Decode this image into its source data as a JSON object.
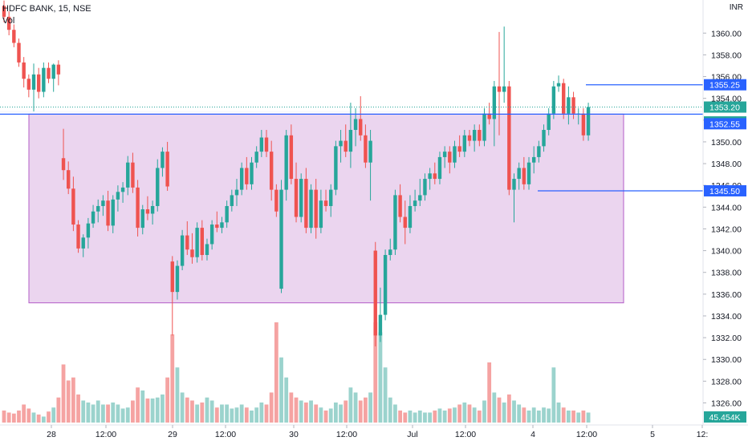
{
  "header": {
    "symbol": "HDFC BANK, 15, NSE",
    "volume_label": "Vol",
    "currency": "INR"
  },
  "colors": {
    "up": "#26a69a",
    "down": "#ef5350",
    "vol_up": "#9bd3cd",
    "vol_down": "#f5a3a2",
    "box_fill": "#e4c7ea",
    "box_stroke": "#b35cc7",
    "hline": "#2962ff",
    "price_line": "#26a69a"
  },
  "chart_data": {
    "type": "candlestick",
    "y_ticks": [
      "1360.00",
      "1358.00",
      "1356.00",
      "1354.00",
      "1352.00",
      "1350.00",
      "1348.00",
      "1346.00",
      "1344.00",
      "1342.00",
      "1340.00",
      "1338.00",
      "1336.00",
      "1334.00",
      "1332.00",
      "1330.00",
      "1328.00",
      "1326.00"
    ],
    "ylim": [
      1325.3,
      1361.2
    ],
    "x_ticks": [
      "28",
      "12:00",
      "29",
      "12:00",
      "30",
      "12:00",
      "Jul",
      "12:00",
      "4",
      "12:00",
      "5",
      "12:"
    ],
    "price_labels": [
      {
        "text": "1355.25",
        "value": 1355.25,
        "kind": "line"
      },
      {
        "text": "1353.20",
        "value": 1353.2,
        "kind": "last"
      },
      {
        "text": "07:26",
        "value": 1352.5,
        "kind": "timer"
      },
      {
        "text": "1352.55",
        "value": 1352.55,
        "kind": "line"
      },
      {
        "text": "1345.50",
        "value": 1345.5,
        "kind": "line"
      }
    ],
    "volume_label": "45.454K",
    "horizontal_lines": [
      1355.25,
      1352.55,
      1345.5
    ],
    "range_box": {
      "top": 1352.55,
      "bottom": 1335.2
    },
    "bars": [
      [
        1362.5,
        1363,
        1361,
        1361.5,
        0.12
      ],
      [
        1361.5,
        1362,
        1359.8,
        1360.3,
        0.1
      ],
      [
        1360.3,
        1360.8,
        1358.7,
        1359.1,
        0.09
      ],
      [
        1359.1,
        1359.5,
        1356.9,
        1357.3,
        0.12
      ],
      [
        1357.3,
        1357.8,
        1355,
        1355.8,
        0.18
      ],
      [
        1355.8,
        1356.2,
        1354.1,
        1354.8,
        0.14
      ],
      [
        1354.8,
        1357.2,
        1352.8,
        1356.2,
        0.1
      ],
      [
        1356.2,
        1356.8,
        1354,
        1354.6,
        0.08
      ],
      [
        1354.6,
        1357.3,
        1354.1,
        1356.8,
        0.06
      ],
      [
        1356.8,
        1357.3,
        1355.4,
        1355.8,
        0.11
      ],
      [
        1355.8,
        1357.2,
        1354.6,
        1357.1,
        0.15
      ],
      [
        1357.1,
        1357.5,
        1355.2,
        1356.2,
        0.25
      ],
      [
        1348.5,
        1351.2,
        1346.5,
        1347.4,
        0.58
      ],
      [
        1347.4,
        1348.2,
        1345.2,
        1345.7,
        0.42
      ],
      [
        1345.7,
        1346.8,
        1341.8,
        1342.4,
        0.45
      ],
      [
        1342.4,
        1342.8,
        1339.8,
        1340.2,
        0.28
      ],
      [
        1340.2,
        1341.5,
        1339.4,
        1341.2,
        0.22
      ],
      [
        1341.2,
        1343,
        1340.2,
        1342.5,
        0.2
      ],
      [
        1342.5,
        1344.2,
        1342.1,
        1343.6,
        0.18
      ],
      [
        1343.6,
        1344.7,
        1342.6,
        1344.1,
        0.22
      ],
      [
        1344.1,
        1345.1,
        1343.2,
        1344.6,
        0.18
      ],
      [
        1344.6,
        1345.5,
        1341.8,
        1342.3,
        0.18
      ],
      [
        1342.3,
        1345.1,
        1341.6,
        1344.7,
        0.2
      ],
      [
        1344.7,
        1346,
        1343.6,
        1345.4,
        0.18
      ],
      [
        1345.4,
        1346.3,
        1344.4,
        1345.8,
        0.14
      ],
      [
        1345.8,
        1348.7,
        1345.1,
        1348.1,
        0.15
      ],
      [
        1348.1,
        1349,
        1345.3,
        1345.8,
        0.22
      ],
      [
        1345.8,
        1346.5,
        1341.3,
        1342.1,
        0.35
      ],
      [
        1342.1,
        1344.2,
        1341.5,
        1343.8,
        0.32
      ],
      [
        1343.8,
        1345,
        1342.8,
        1343.4,
        0.24
      ],
      [
        1343.4,
        1344.6,
        1342.4,
        1344.1,
        0.24
      ],
      [
        1344.1,
        1348.4,
        1343.6,
        1347.6,
        0.25
      ],
      [
        1347.6,
        1349.5,
        1346.8,
        1349.1,
        0.28
      ],
      [
        1349.1,
        1350,
        1345.5,
        1345.9,
        0.45
      ],
      [
        1339,
        1339.5,
        1332.2,
        1336.2,
        0.88
      ],
      [
        1336.2,
        1339.1,
        1335.5,
        1338.6,
        0.55
      ],
      [
        1338.6,
        1341.9,
        1338.2,
        1341.4,
        0.3
      ],
      [
        1341.4,
        1342.7,
        1339.6,
        1340.1,
        0.25
      ],
      [
        1340.1,
        1341.6,
        1338.8,
        1339.4,
        0.22
      ],
      [
        1339.4,
        1342.6,
        1338.9,
        1342.1,
        0.18
      ],
      [
        1342.1,
        1342.8,
        1339.1,
        1339.6,
        0.2
      ],
      [
        1339.6,
        1341.1,
        1339.1,
        1340.6,
        0.25
      ],
      [
        1340.6,
        1342.8,
        1340.1,
        1342.4,
        0.22
      ],
      [
        1342.4,
        1343.6,
        1341.7,
        1342.1,
        0.15
      ],
      [
        1342.1,
        1343.1,
        1341.6,
        1342.6,
        0.18
      ],
      [
        1342.6,
        1344.6,
        1342.1,
        1344.1,
        0.18
      ],
      [
        1344.1,
        1345.6,
        1343.6,
        1345.1,
        0.14
      ],
      [
        1345.1,
        1346.6,
        1344.1,
        1345.6,
        0.15
      ],
      [
        1345.6,
        1348.1,
        1345.1,
        1347.6,
        0.18
      ],
      [
        1347.6,
        1348.6,
        1345.6,
        1346.1,
        0.15
      ],
      [
        1346.1,
        1348.6,
        1345.6,
        1348.1,
        0.12
      ],
      [
        1348.1,
        1349.6,
        1347.6,
        1349.1,
        0.15
      ],
      [
        1349.1,
        1351.1,
        1348.6,
        1350.4,
        0.2
      ],
      [
        1350.4,
        1351.1,
        1348.6,
        1349.1,
        0.18
      ],
      [
        1349.1,
        1350.1,
        1344.6,
        1345.6,
        0.3
      ],
      [
        1345.6,
        1346.1,
        1343.1,
        1343.6,
        1.0
      ],
      [
        1336.5,
        1346.5,
        1336.1,
        1345.6,
        0.65
      ],
      [
        1345.6,
        1351.1,
        1344.6,
        1350.6,
        0.45
      ],
      [
        1350.6,
        1351.6,
        1346.1,
        1346.6,
        0.3
      ],
      [
        1346.6,
        1348.1,
        1342.6,
        1343.1,
        0.25
      ],
      [
        1343.1,
        1347.1,
        1342.6,
        1346.6,
        0.22
      ],
      [
        1346.6,
        1347.6,
        1341.6,
        1342.1,
        0.2
      ],
      [
        1342.1,
        1346.1,
        1341.6,
        1345.6,
        0.22
      ],
      [
        1345.6,
        1346.6,
        1341.1,
        1342.1,
        0.18
      ],
      [
        1342.1,
        1345.6,
        1341.6,
        1344.6,
        0.15
      ],
      [
        1344.6,
        1345.6,
        1343.6,
        1344.1,
        0.12
      ],
      [
        1344.1,
        1346.1,
        1343.1,
        1345.6,
        0.14
      ],
      [
        1345.6,
        1350.1,
        1345.1,
        1349.6,
        0.2
      ],
      [
        1349.6,
        1351.1,
        1348.1,
        1350.1,
        0.18
      ],
      [
        1350.1,
        1351.6,
        1348.6,
        1349.1,
        0.22
      ],
      [
        1349.1,
        1353.6,
        1347.6,
        1351.1,
        0.35
      ],
      [
        1351.1,
        1353.1,
        1349.6,
        1352.1,
        0.3
      ],
      [
        1352.1,
        1354.2,
        1350.1,
        1350.6,
        0.22
      ],
      [
        1350.6,
        1351.6,
        1347.6,
        1348.1,
        0.25
      ],
      [
        1348.1,
        1351.1,
        1344.6,
        1350.1,
        0.3
      ],
      [
        1340,
        1340.8,
        1331.2,
        1332.2,
        1.0
      ],
      [
        1332.2,
        1336.6,
        1331.6,
        1334.1,
        0.9
      ],
      [
        1334.1,
        1340.1,
        1333.6,
        1339.6,
        0.55
      ],
      [
        1339.6,
        1341.1,
        1339.1,
        1340.1,
        0.25
      ],
      [
        1340.1,
        1345.6,
        1339.6,
        1345.1,
        0.18
      ],
      [
        1345.1,
        1346.1,
        1342.6,
        1343.1,
        0.12
      ],
      [
        1343.1,
        1344.6,
        1340.6,
        1342.1,
        0.1
      ],
      [
        1342.1,
        1345.1,
        1341.6,
        1344.1,
        0.12
      ],
      [
        1344.1,
        1345.6,
        1343.6,
        1344.6,
        0.1
      ],
      [
        1344.6,
        1346.6,
        1344.1,
        1345.1,
        0.12
      ],
      [
        1345.1,
        1347.1,
        1344.6,
        1346.6,
        0.1
      ],
      [
        1346.6,
        1347.6,
        1345.6,
        1347.1,
        0.1
      ],
      [
        1347.1,
        1348.1,
        1346.1,
        1346.6,
        0.12
      ],
      [
        1346.6,
        1349.1,
        1346.1,
        1348.6,
        0.14
      ],
      [
        1348.6,
        1349.6,
        1347.6,
        1349.1,
        0.12
      ],
      [
        1349.1,
        1349.6,
        1347.1,
        1348.1,
        0.14
      ],
      [
        1348.1,
        1350.1,
        1347.6,
        1349.6,
        0.15
      ],
      [
        1349.6,
        1350.6,
        1348.6,
        1349.1,
        0.18
      ],
      [
        1349.1,
        1351.1,
        1348.6,
        1350.6,
        0.2
      ],
      [
        1350.6,
        1351.1,
        1349.6,
        1350.1,
        0.18
      ],
      [
        1350.1,
        1351.6,
        1349.1,
        1351.1,
        0.15
      ],
      [
        1351.1,
        1351.6,
        1349.6,
        1350.1,
        0.12
      ],
      [
        1350.1,
        1353.1,
        1349.6,
        1352.6,
        0.22
      ],
      [
        1352.6,
        1353.6,
        1351.6,
        1352.1,
        0.6
      ],
      [
        1352.1,
        1355.6,
        1349.6,
        1355.1,
        0.3
      ],
      [
        1355.1,
        1360.1,
        1350.6,
        1354.6,
        0.25
      ],
      [
        1354.6,
        1360.6,
        1353.6,
        1355.1,
        0.2
      ],
      [
        1355.1,
        1355.6,
        1345.1,
        1345.6,
        0.28
      ],
      [
        1345.6,
        1347.1,
        1342.6,
        1346.6,
        0.22
      ],
      [
        1346.6,
        1348.1,
        1345.6,
        1347.6,
        0.18
      ],
      [
        1347.6,
        1348.6,
        1345.6,
        1346.1,
        0.15
      ],
      [
        1346.1,
        1348.6,
        1345.6,
        1348.1,
        0.12
      ],
      [
        1348.1,
        1349.6,
        1347.1,
        1348.6,
        0.15
      ],
      [
        1348.6,
        1350.1,
        1348.1,
        1349.6,
        0.12
      ],
      [
        1349.6,
        1351.6,
        1349.1,
        1351.1,
        0.15
      ],
      [
        1351.1,
        1353.1,
        1350.6,
        1352.6,
        0.14
      ],
      [
        1352.6,
        1355.6,
        1352.1,
        1355.1,
        0.55
      ],
      [
        1355.1,
        1356.1,
        1354.6,
        1355.4,
        0.2
      ],
      [
        1355.4,
        1355.8,
        1352.1,
        1352.6,
        0.15
      ],
      [
        1352.6,
        1355.1,
        1351.6,
        1354.1,
        0.12
      ],
      [
        1354.1,
        1354.6,
        1352.1,
        1352.6,
        0.12
      ],
      [
        1352.6,
        1353.1,
        1351.6,
        1352.6,
        0.1
      ],
      [
        1352.6,
        1353.1,
        1350.1,
        1350.6,
        0.12
      ],
      [
        1350.6,
        1353.6,
        1350.1,
        1353.2,
        0.1
      ]
    ]
  }
}
